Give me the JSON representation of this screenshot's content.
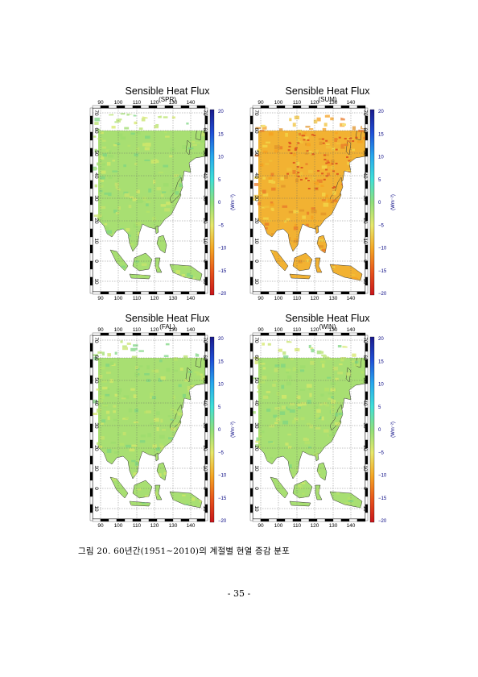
{
  "figure": {
    "panels": [
      {
        "id": "spr",
        "title": "Sensible Heat Flux",
        "season": "(SPR)",
        "tone": "green"
      },
      {
        "id": "sum",
        "title": "Sensible Heat Flux",
        "season": "(SUM)",
        "tone": "orange"
      },
      {
        "id": "fal",
        "title": "Sensible Heat Flux",
        "season": "(FAL)",
        "tone": "green"
      },
      {
        "id": "win",
        "title": "Sensible Heat Flux",
        "season": "(WIN)",
        "tone": "green"
      }
    ],
    "lon_labels": [
      "90",
      "100",
      "110",
      "120",
      "130",
      "140"
    ],
    "lat_labels": [
      "10",
      "0",
      "10",
      "20",
      "30",
      "40",
      "50",
      "60",
      "70"
    ],
    "colorbar": {
      "ticks": [
        "20",
        "15",
        "10",
        "5",
        "0",
        "−5",
        "−10",
        "−15",
        "−20"
      ],
      "unit": "(Wm⁻²)",
      "colors": [
        "#1a1a8c",
        "#1f4fd6",
        "#27a7ee",
        "#3fe0d8",
        "#8fe07a",
        "#e8e86a",
        "#f5a623",
        "#e8541b",
        "#c8151b"
      ]
    }
  },
  "caption": "그림 20. 60년간(1951~2010)의 계절별 현열 증감 분포",
  "page_number": "- 35 -"
}
